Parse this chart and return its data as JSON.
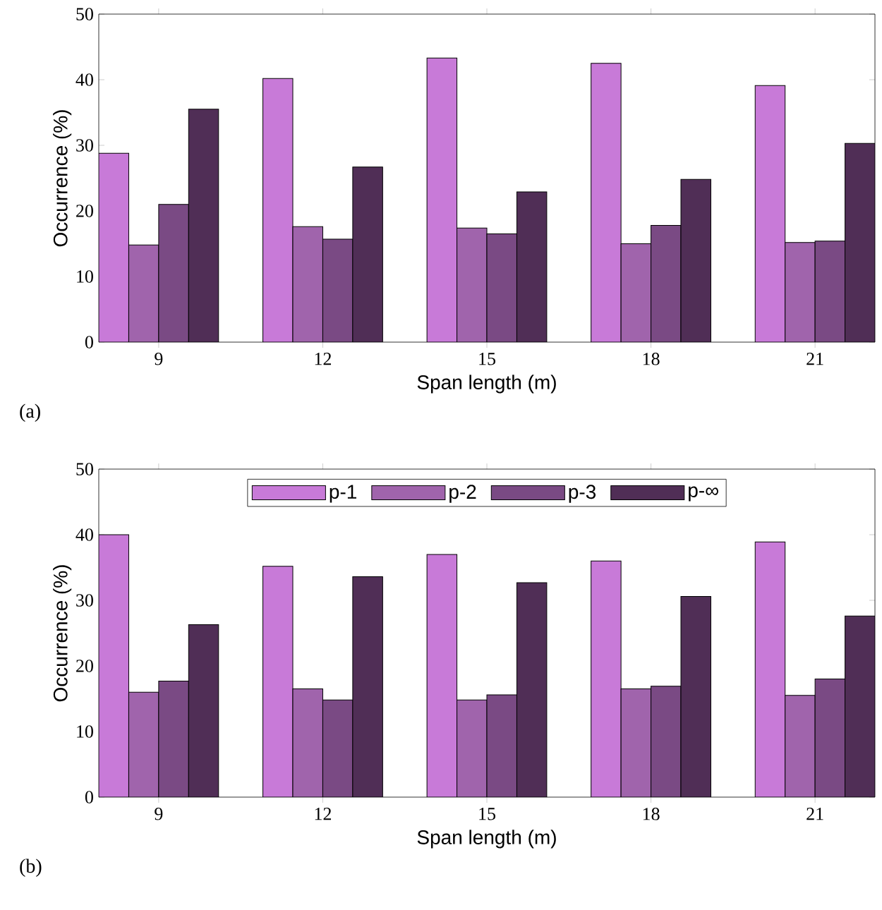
{
  "chart_data": [
    {
      "type": "bar",
      "categories": [
        "9",
        "12",
        "15",
        "18",
        "21"
      ],
      "xlabel": "Span length (m)",
      "ylabel": "Occurrence (%)",
      "ylim": [
        0,
        50
      ],
      "yticks": [
        0,
        10,
        20,
        30,
        40,
        50
      ],
      "annotations": [
        "(a)"
      ],
      "series": [
        {
          "color": "#c87ad8",
          "values": [
            28.8,
            40.2,
            43.3,
            42.5,
            39.1
          ]
        },
        {
          "color": "#a064ac",
          "values": [
            14.8,
            17.6,
            17.4,
            15.0,
            15.2
          ]
        },
        {
          "color": "#7a4a84",
          "values": [
            21.0,
            15.7,
            16.5,
            17.8,
            15.4
          ]
        },
        {
          "color": "#502e56",
          "values": [
            35.5,
            26.7,
            22.9,
            24.8,
            30.3
          ]
        }
      ]
    },
    {
      "type": "bar",
      "categories": [
        "9",
        "12",
        "15",
        "18",
        "21"
      ],
      "xlabel": "Span length (m)",
      "ylabel": "Occurrence (%)",
      "ylim": [
        0,
        50
      ],
      "yticks": [
        0,
        10,
        20,
        30,
        40,
        50
      ],
      "annotations": [
        "(b)"
      ],
      "legend": "top",
      "series": [
        {
          "name": "p-1",
          "color": "#c87ad8",
          "values": [
            40.0,
            35.2,
            37.0,
            36.0,
            38.9
          ]
        },
        {
          "name": "p-2",
          "color": "#a064ac",
          "values": [
            16.0,
            16.5,
            14.8,
            16.5,
            15.5
          ]
        },
        {
          "name": "p-3",
          "color": "#7a4a84",
          "values": [
            17.7,
            14.8,
            15.6,
            16.9,
            18.0
          ]
        },
        {
          "name": "p-∞",
          "color": "#502e56",
          "values": [
            26.3,
            33.6,
            32.7,
            30.6,
            27.6
          ]
        }
      ]
    }
  ]
}
